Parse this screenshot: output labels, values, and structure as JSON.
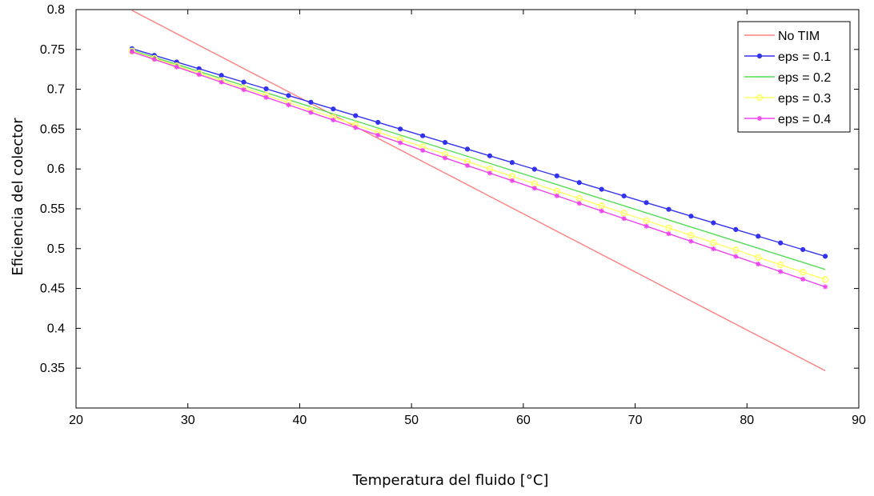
{
  "chart_data": {
    "type": "line",
    "title": "",
    "xlabel": "Temperatura del fluido [°C]",
    "ylabel": "Eficiencia del colector",
    "xlim": [
      20,
      90
    ],
    "ylim": [
      0.3,
      0.8
    ],
    "xticks": [
      20,
      30,
      40,
      50,
      60,
      70,
      80,
      90
    ],
    "xtick_labels": [
      "20",
      "30",
      "40",
      "50",
      "60",
      "70",
      "80",
      "90"
    ],
    "yticks": [
      0.35,
      0.4,
      0.45,
      0.5,
      0.55,
      0.6,
      0.65,
      0.7,
      0.75,
      0.8
    ],
    "ytick_labels": [
      "0.35",
      "0.4",
      "0.45",
      "0.5",
      "0.55",
      "0.6",
      "0.65",
      "0.7",
      "0.75",
      "0.8"
    ],
    "grid": false,
    "legend_position": "top-right",
    "x": [
      25,
      27,
      29,
      31,
      33,
      35,
      37,
      39,
      41,
      43,
      45,
      47,
      49,
      51,
      53,
      55,
      57,
      59,
      61,
      63,
      65,
      67,
      69,
      71,
      73,
      75,
      77,
      79,
      81,
      83,
      85,
      87
    ],
    "series": [
      {
        "name": "No TIM",
        "color": "#ff8080",
        "marker": "none",
        "values": [
          0.799,
          0.7844,
          0.7698,
          0.7552,
          0.7406,
          0.726,
          0.7115,
          0.6969,
          0.6823,
          0.6677,
          0.6531,
          0.6385,
          0.6239,
          0.6094,
          0.5948,
          0.5802,
          0.5656,
          0.551,
          0.5364,
          0.5218,
          0.5073,
          0.4927,
          0.4781,
          0.4635,
          0.4489,
          0.4343,
          0.4197,
          0.4052,
          0.3906,
          0.376,
          0.3614,
          0.3468
        ]
      },
      {
        "name": "eps = 0.1",
        "color": "#3333ee",
        "marker": "dot",
        "values": [
          0.751,
          0.7426,
          0.7342,
          0.7258,
          0.7174,
          0.709,
          0.7006,
          0.6921,
          0.6837,
          0.6753,
          0.6669,
          0.6585,
          0.6501,
          0.6417,
          0.6333,
          0.6249,
          0.6165,
          0.6081,
          0.5997,
          0.5913,
          0.5829,
          0.5745,
          0.5661,
          0.5577,
          0.5493,
          0.5408,
          0.5324,
          0.524,
          0.5156,
          0.5072,
          0.4988,
          0.4904
        ]
      },
      {
        "name": "eps = 0.2",
        "color": "#55dd55",
        "marker": "none",
        "values": [
          0.749,
          0.7401,
          0.7313,
          0.7224,
          0.7135,
          0.7046,
          0.6958,
          0.6869,
          0.678,
          0.6691,
          0.6603,
          0.6514,
          0.6425,
          0.6336,
          0.6248,
          0.6159,
          0.607,
          0.5981,
          0.5893,
          0.5804,
          0.5715,
          0.5626,
          0.5538,
          0.5449,
          0.536,
          0.5271,
          0.5183,
          0.5094,
          0.5005,
          0.4916,
          0.4828,
          0.4739
        ]
      },
      {
        "name": "eps = 0.3",
        "color": "#ffff66",
        "marker": "circle",
        "values": [
          0.748,
          0.7388,
          0.7295,
          0.7203,
          0.711,
          0.7018,
          0.6925,
          0.6833,
          0.674,
          0.6648,
          0.6555,
          0.6463,
          0.637,
          0.6278,
          0.6185,
          0.6093,
          0.6,
          0.5908,
          0.5815,
          0.5723,
          0.563,
          0.5538,
          0.5445,
          0.5353,
          0.526,
          0.5168,
          0.5075,
          0.4983,
          0.489,
          0.4798,
          0.4705,
          0.4613
        ]
      },
      {
        "name": "eps = 0.4",
        "color": "#ee44ee",
        "marker": "star",
        "values": [
          0.747,
          0.7375,
          0.728,
          0.7185,
          0.7089,
          0.6994,
          0.6899,
          0.6804,
          0.6709,
          0.6614,
          0.6519,
          0.6424,
          0.6329,
          0.6233,
          0.6138,
          0.6043,
          0.5948,
          0.5853,
          0.5758,
          0.5663,
          0.5568,
          0.5473,
          0.5377,
          0.5282,
          0.5187,
          0.5092,
          0.4997,
          0.4902,
          0.4807,
          0.4712,
          0.4617,
          0.4521
        ]
      }
    ]
  }
}
